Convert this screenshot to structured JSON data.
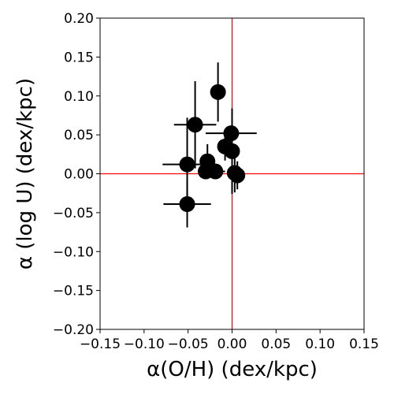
{
  "chart_data": {
    "type": "scatter",
    "xlabel": "α(O/H) (dex/kpc)",
    "ylabel": "α (log U) (dex/kpc)",
    "xlim": [
      -0.15,
      0.15
    ],
    "ylim": [
      -0.2,
      0.2
    ],
    "xticks": [
      -0.15,
      -0.1,
      -0.05,
      0.0,
      0.05,
      0.1,
      0.15
    ],
    "xtick_labels": [
      "−0.15",
      "−0.10",
      "−0.05",
      "0.00",
      "0.05",
      "0.10",
      "0.15"
    ],
    "yticks": [
      -0.2,
      -0.15,
      -0.1,
      -0.05,
      0.0,
      0.05,
      0.1,
      0.15,
      0.2
    ],
    "ytick_labels": [
      "−0.20",
      "−0.15",
      "−0.10",
      "−0.05",
      "0.00",
      "0.05",
      "0.10",
      "0.15",
      "0.20"
    ],
    "grid": false,
    "reference_lines": {
      "x": 0.0,
      "y": 0.0,
      "color": "#ff0000"
    },
    "marker_color": "#000000",
    "points": [
      {
        "x": -0.016,
        "y": 0.105,
        "xerr": 0.0,
        "yerr": 0.038
      },
      {
        "x": -0.042,
        "y": 0.063,
        "xerr": 0.024,
        "yerr": 0.056
      },
      {
        "x": -0.001,
        "y": 0.052,
        "xerr": 0.029,
        "yerr": 0.0
      },
      {
        "x": -0.008,
        "y": 0.035,
        "xerr": 0.0,
        "yerr": 0.018
      },
      {
        "x": 0.0,
        "y": 0.029,
        "xerr": 0.0,
        "yerr": 0.055
      },
      {
        "x": -0.051,
        "y": 0.012,
        "xerr": 0.028,
        "yerr": 0.06
      },
      {
        "x": -0.028,
        "y": 0.016,
        "xerr": 0.0,
        "yerr": 0.022
      },
      {
        "x": -0.03,
        "y": 0.003,
        "xerr": 0.0,
        "yerr": 0.0
      },
      {
        "x": -0.019,
        "y": 0.003,
        "xerr": 0.011,
        "yerr": 0.0
      },
      {
        "x": 0.003,
        "y": 0.001,
        "xerr": 0.0,
        "yerr": 0.025
      },
      {
        "x": 0.006,
        "y": -0.002,
        "xerr": 0.0,
        "yerr": 0.018
      },
      {
        "x": -0.051,
        "y": -0.039,
        "xerr": 0.027,
        "yerr": 0.03
      }
    ]
  }
}
